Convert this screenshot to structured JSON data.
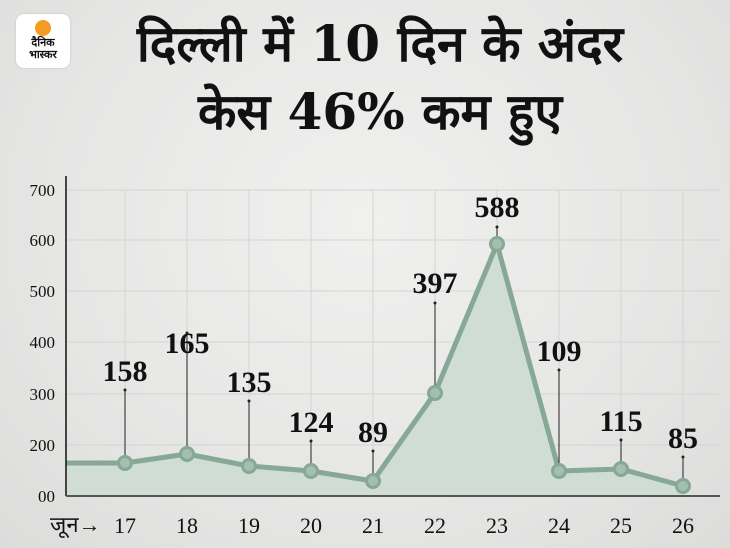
{
  "brand": {
    "line1": "दैनिक",
    "line2": "भास्कर",
    "sun_color": "#f59a23"
  },
  "title": {
    "line1": "दिल्ली में 10 दिन के अंदर",
    "line2": "केस 46% कम हुए"
  },
  "colors": {
    "line": "#87a896",
    "fill": "#cfddd4",
    "marker": "#a3bfae",
    "axis": "#111111",
    "grid": "#d4d4d4"
  },
  "chart_data": {
    "type": "area",
    "title": "दिल्ली में 10 दिन के अंदर केस 46% कम हुए",
    "xlabel": "जून→",
    "ylabel": "",
    "categories": [
      "17",
      "18",
      "19",
      "20",
      "21",
      "22",
      "23",
      "24",
      "25",
      "26"
    ],
    "values": [
      158,
      165,
      135,
      124,
      89,
      397,
      588,
      109,
      115,
      85
    ],
    "yticks": [
      "00",
      "200",
      "300",
      "400",
      "500",
      "600",
      "700"
    ],
    "ylim": [
      0,
      700
    ],
    "grid": true,
    "legend": null
  },
  "axis": {
    "x_prefix": "जून→"
  }
}
